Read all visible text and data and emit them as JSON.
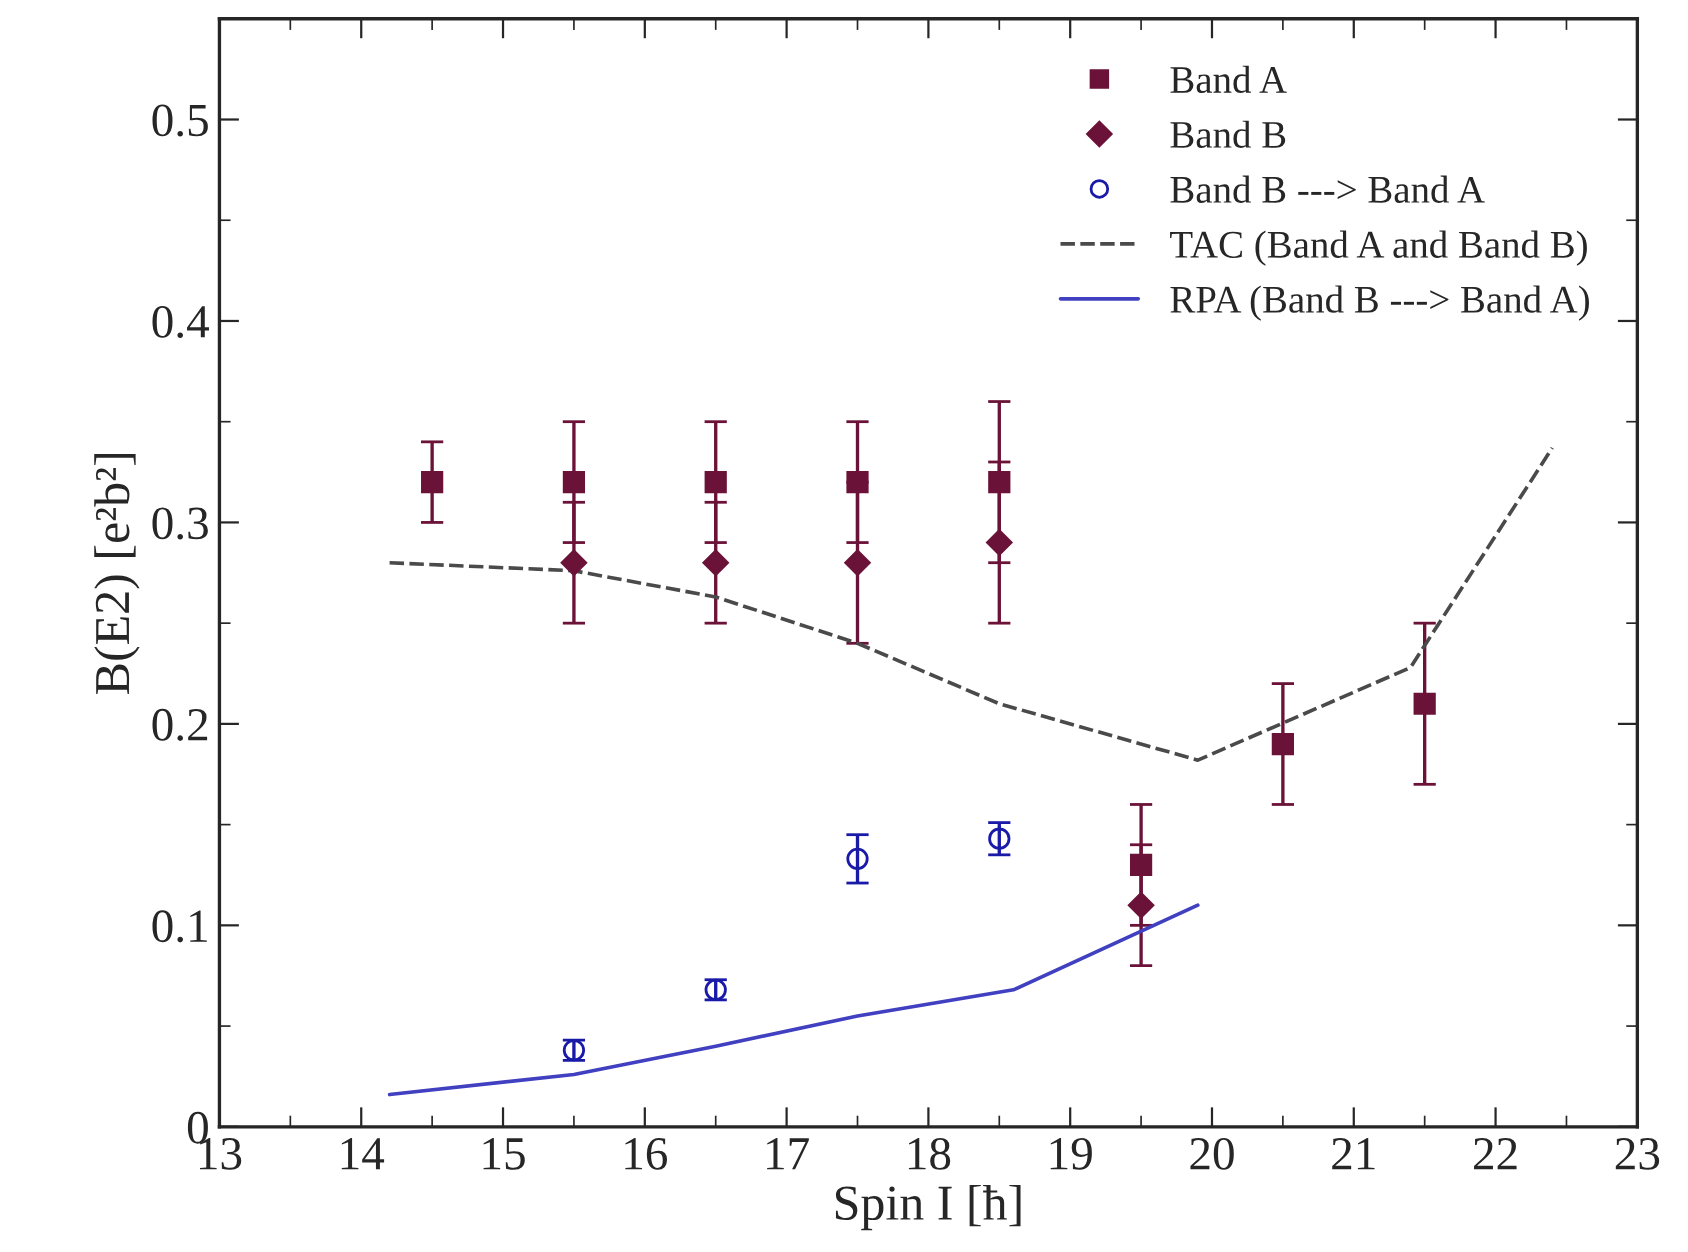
{
  "chart_data": {
    "type": "scatter",
    "xlabel": "Spin I [ħ]",
    "ylabel": "B(E2) [e²b²]",
    "xlim": [
      13,
      23
    ],
    "ylim": [
      0,
      0.55
    ],
    "xticks": [
      13,
      14,
      15,
      16,
      17,
      18,
      19,
      20,
      21,
      22,
      23
    ],
    "yticks": [
      0,
      0.1,
      0.2,
      0.3,
      0.4,
      0.5
    ],
    "legend": "top right",
    "grid": false,
    "series": [
      {
        "name": "Band A",
        "marker": "square",
        "color": "#6b1238",
        "x": [
          14.5,
          15.5,
          16.5,
          17.5,
          18.5,
          19.5,
          20.5,
          21.5
        ],
        "values": [
          0.32,
          0.32,
          0.32,
          0.32,
          0.32,
          0.13,
          0.19,
          0.21
        ],
        "errors": [
          0.02,
          0.03,
          0.03,
          0.03,
          0.04,
          0.03,
          0.03,
          0.04
        ]
      },
      {
        "name": "Band B",
        "marker": "diamond",
        "color": "#6b1238",
        "x": [
          15.5,
          16.5,
          17.5,
          18.5,
          19.5
        ],
        "values": [
          0.28,
          0.28,
          0.28,
          0.29,
          0.11
        ],
        "errors": [
          0.03,
          0.03,
          0.04,
          0.04,
          0.03
        ]
      },
      {
        "name": "Band B ---> Band A",
        "marker": "circle",
        "color": "#1a1aa8",
        "x": [
          15.5,
          16.5,
          17.5,
          18.5
        ],
        "values": [
          0.038,
          0.068,
          0.133,
          0.143
        ],
        "errors": [
          0.005,
          0.005,
          0.012,
          0.008
        ]
      },
      {
        "name": "TAC (Band A and Band B)",
        "type": "line",
        "line_style": "dashed",
        "color": "#4a4a4a",
        "x": [
          14.2,
          15.5,
          16.5,
          17.5,
          18.5,
          19.9,
          21.4,
          22.4
        ],
        "values": [
          0.28,
          0.276,
          0.263,
          0.24,
          0.21,
          0.182,
          0.228,
          0.337
        ]
      },
      {
        "name": "RPA (Band B ---> Band A)",
        "type": "line",
        "line_style": "solid",
        "color": "#4040c0",
        "x": [
          14.2,
          15.5,
          16.5,
          17.5,
          18.6,
          19.9
        ],
        "values": [
          0.016,
          0.026,
          0.04,
          0.055,
          0.068,
          0.11
        ]
      }
    ]
  }
}
